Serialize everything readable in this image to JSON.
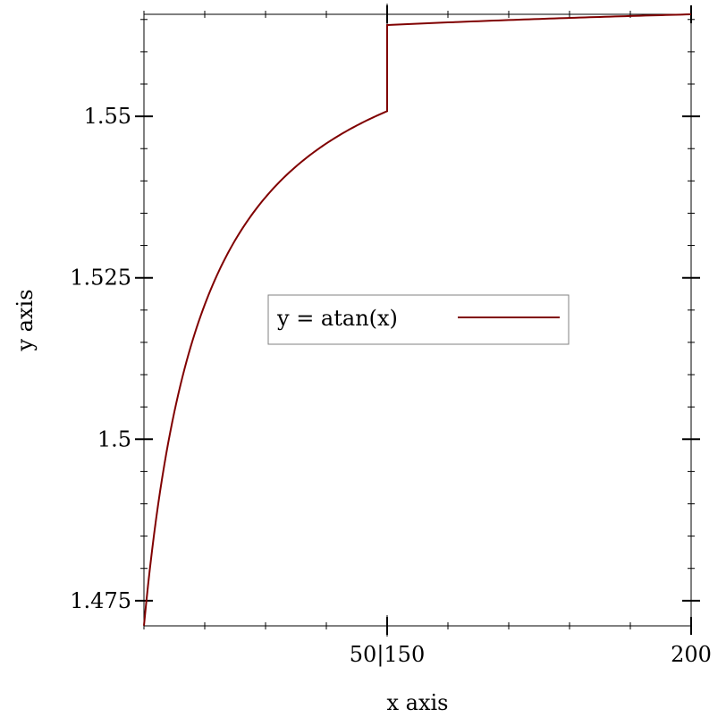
{
  "chart_data": {
    "type": "line",
    "title": "",
    "xlabel": "x axis",
    "ylabel": "y axis",
    "x_axis": {
      "kind": "broken",
      "segments": [
        {
          "range": [
            10,
            50
          ]
        },
        {
          "range": [
            150,
            200
          ]
        }
      ],
      "tick_labels": [
        {
          "x": 50,
          "text": "50|150"
        },
        {
          "x": 200,
          "text": "200"
        }
      ]
    },
    "ylim": [
      1.4711,
      1.5658
    ],
    "y_ticks_major": [
      {
        "value": 1.475,
        "text": "1.475"
      },
      {
        "value": 1.5,
        "text": "1.5"
      },
      {
        "value": 1.525,
        "text": "1.525"
      },
      {
        "value": 1.55,
        "text": "1.55"
      }
    ],
    "grid": false,
    "legend": {
      "placement": "center",
      "entries": [
        {
          "label": "y = atan(x)",
          "color": "#800000"
        }
      ]
    },
    "series": [
      {
        "name": "y = atan(x)",
        "color": "#800000",
        "function": "atan",
        "points": [
          [
            10,
            1.4711
          ],
          [
            12,
            1.4877
          ],
          [
            14,
            1.4995
          ],
          [
            16,
            1.5084
          ],
          [
            18,
            1.5153
          ],
          [
            20,
            1.5208
          ],
          [
            25,
            1.5308
          ],
          [
            30,
            1.5375
          ],
          [
            35,
            1.5422
          ],
          [
            40,
            1.5458
          ],
          [
            45,
            1.5486
          ],
          [
            50,
            1.5508
          ],
          [
            150,
            1.5641
          ],
          [
            175,
            1.5651
          ],
          [
            200,
            1.5658
          ]
        ]
      }
    ]
  }
}
